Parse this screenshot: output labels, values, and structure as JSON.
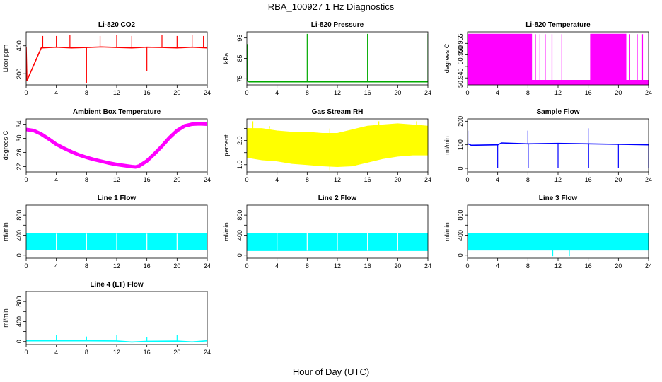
{
  "page": {
    "title": "RBA_100927  1 Hz Diagnostics",
    "x_axis_label": "Hour of Day (UTC)"
  },
  "chart_data": [
    {
      "type": "line",
      "title": "Li-820 CO2",
      "ylabel": "Licor ppm",
      "color": "#ff0000",
      "xlim": [
        0,
        24
      ],
      "ylim": [
        120,
        500
      ],
      "xticks": [
        0,
        4,
        8,
        12,
        16,
        20,
        24
      ],
      "yticks": [
        200,
        400
      ],
      "ytick_labels": [
        "200",
        "400"
      ],
      "series": [
        {
          "x": [
            0,
            0.1,
            2,
            4,
            6,
            8,
            10,
            12,
            14,
            16,
            18,
            20,
            22,
            24
          ],
          "y": [
            390,
            150,
            385,
            390,
            385,
            388,
            392,
            388,
            385,
            390,
            388,
            385,
            390,
            385
          ]
        }
      ],
      "spikes": [
        {
          "x": 0.1,
          "y": 150
        },
        {
          "x": 2.2,
          "y": 470
        },
        {
          "x": 4.0,
          "y": 470
        },
        {
          "x": 5.8,
          "y": 475
        },
        {
          "x": 8.0,
          "y": 130
        },
        {
          "x": 9.8,
          "y": 470
        },
        {
          "x": 12.0,
          "y": 475
        },
        {
          "x": 14.0,
          "y": 470
        },
        {
          "x": 16.0,
          "y": 220
        },
        {
          "x": 18.0,
          "y": 475
        },
        {
          "x": 20.0,
          "y": 470
        },
        {
          "x": 22.0,
          "y": 475
        },
        {
          "x": 23.5,
          "y": 470
        }
      ]
    },
    {
      "type": "line",
      "title": "Li-820 Pressure",
      "ylabel": "kPa",
      "color": "#00aa00",
      "xlim": [
        0,
        24
      ],
      "ylim": [
        72,
        98
      ],
      "xticks": [
        0,
        4,
        8,
        12,
        16,
        20,
        24
      ],
      "yticks": [
        75,
        85,
        95
      ],
      "ytick_labels": [
        "75",
        "85",
        "95"
      ],
      "series": [
        {
          "x": [
            0,
            0.3,
            4,
            8,
            12,
            16,
            20,
            24
          ],
          "y": [
            74,
            73.5,
            73.5,
            73.5,
            73.5,
            73.5,
            73.5,
            73.5
          ]
        }
      ],
      "spikes": [
        {
          "x": 0.05,
          "y": 92
        },
        {
          "x": 8.0,
          "y": 97
        },
        {
          "x": 16.0,
          "y": 97
        },
        {
          "x": 24.0,
          "y": 97
        }
      ]
    },
    {
      "type": "area",
      "title": "Li-820 Temperature",
      "ylabel": "degrees C",
      "color": "#ff00ff",
      "xlim": [
        0,
        24
      ],
      "ylim": [
        50.937,
        50.96
      ],
      "xticks": [
        0,
        4,
        8,
        12,
        16,
        20,
        24
      ],
      "yticks": [
        50.94,
        50.945,
        50.95,
        50.955
      ],
      "ytick_labels": [
        "50.940",
        "",
        "50.950",
        "50.955"
      ],
      "series": [
        {
          "x": [
            0,
            8.5,
            8.5,
            16.3,
            16.3,
            21,
            21,
            24
          ],
          "y": [
            50.959,
            50.959,
            50.939,
            50.939,
            50.959,
            50.959,
            50.939,
            50.939
          ]
        }
      ],
      "spikes": [
        {
          "x": 9.0,
          "y": 50.959
        },
        {
          "x": 9.6,
          "y": 50.959
        },
        {
          "x": 10.3,
          "y": 50.959
        },
        {
          "x": 11.2,
          "y": 50.959
        },
        {
          "x": 12.5,
          "y": 50.959
        },
        {
          "x": 21.5,
          "y": 50.959
        },
        {
          "x": 22.5,
          "y": 50.959
        },
        {
          "x": 23.2,
          "y": 50.959
        }
      ]
    },
    {
      "type": "line",
      "title": "Ambient Box Temperature",
      "ylabel": "degrees C",
      "color": "#ff00ff",
      "xlim": [
        0,
        24
      ],
      "ylim": [
        20.5,
        35.5
      ],
      "xticks": [
        0,
        4,
        8,
        12,
        16,
        20,
        24
      ],
      "yticks": [
        22,
        26,
        30,
        34
      ],
      "ytick_labels": [
        "22",
        "26",
        "30",
        "34"
      ],
      "series": [
        {
          "x": [
            0,
            1,
            2,
            3,
            4,
            5,
            6,
            7,
            8,
            9,
            10,
            11,
            12,
            13,
            14,
            14.5,
            15,
            16,
            17,
            18,
            19,
            20,
            21,
            22,
            23,
            24
          ],
          "y": [
            32.5,
            32.2,
            31.2,
            29.8,
            28.3,
            27.2,
            26.2,
            25.3,
            24.6,
            24,
            23.5,
            23.0,
            22.6,
            22.3,
            22.0,
            21.9,
            22.2,
            23.6,
            25.6,
            27.8,
            30.2,
            32.2,
            33.5,
            34.0,
            34.1,
            34.0
          ]
        }
      ],
      "spikes": []
    },
    {
      "type": "area",
      "title": "Gas Stream RH",
      "ylabel": "percent",
      "color": "#ffff00",
      "xlim": [
        0,
        24
      ],
      "ylim": [
        0.7,
        2.9
      ],
      "xticks": [
        0,
        4,
        8,
        12,
        16,
        20,
        24
      ],
      "yticks": [
        1.0,
        1.5,
        2.0,
        2.5
      ],
      "ytick_labels": [
        "1.0",
        "",
        "2.0",
        ""
      ],
      "series": [
        {
          "name": "upper",
          "x": [
            0,
            2,
            4,
            6,
            8,
            10,
            12,
            14,
            16,
            18,
            20,
            22,
            24
          ],
          "y": [
            2.5,
            2.5,
            2.4,
            2.35,
            2.35,
            2.3,
            2.3,
            2.45,
            2.6,
            2.65,
            2.7,
            2.65,
            2.6
          ]
        },
        {
          "name": "lower",
          "x": [
            0,
            2,
            4,
            6,
            8,
            10,
            12,
            14,
            16,
            18,
            20,
            22,
            24
          ],
          "y": [
            1.3,
            1.2,
            1.15,
            1.05,
            1.0,
            0.95,
            0.92,
            0.95,
            1.1,
            1.25,
            1.35,
            1.4,
            1.4
          ]
        }
      ],
      "spikes": [
        {
          "x": 0.8,
          "y": 2.8
        },
        {
          "x": 3.0,
          "y": 2.6
        },
        {
          "x": 11.0,
          "y": 0.75
        },
        {
          "x": 17.5,
          "y": 2.8
        },
        {
          "x": 22.5,
          "y": 2.8
        }
      ]
    },
    {
      "type": "line",
      "title": "Sample Flow",
      "ylabel": "ml/min",
      "color": "#0000ff",
      "xlim": [
        0,
        24
      ],
      "ylim": [
        -15,
        210
      ],
      "xticks": [
        0,
        4,
        8,
        12,
        16,
        20,
        24
      ],
      "yticks": [
        0,
        100,
        200
      ],
      "ytick_labels": [
        "0",
        "100",
        "200"
      ],
      "series": [
        {
          "x": [
            0,
            0.5,
            4,
            4.5,
            8,
            12,
            16,
            20,
            24
          ],
          "y": [
            105,
            98,
            100,
            108,
            104,
            106,
            104,
            102,
            100
          ]
        }
      ],
      "spikes": [
        {
          "x": 0.05,
          "y": 160
        },
        {
          "x": 4.0,
          "y": 0
        },
        {
          "x": 8.0,
          "y": 160
        },
        {
          "x": 8.05,
          "y": 0
        },
        {
          "x": 12.0,
          "y": 0
        },
        {
          "x": 16.0,
          "y": 170
        },
        {
          "x": 16.05,
          "y": 0
        },
        {
          "x": 20.0,
          "y": 0
        },
        {
          "x": 24.0,
          "y": 0
        }
      ]
    },
    {
      "type": "area",
      "title": "Line 1 Flow",
      "ylabel": "ml/min",
      "color": "#00ffff",
      "xlim": [
        0,
        24
      ],
      "ylim": [
        -60,
        1000
      ],
      "xticks": [
        0,
        4,
        8,
        12,
        16,
        20,
        24
      ],
      "yticks": [
        0,
        200,
        400,
        600,
        800
      ],
      "ytick_labels": [
        "0",
        "",
        "400",
        "",
        "800"
      ],
      "series": [
        {
          "name": "upper",
          "x": [
            0,
            24
          ],
          "y": [
            430,
            430
          ]
        },
        {
          "name": "lower",
          "x": [
            0,
            24
          ],
          "y": [
            110,
            110
          ]
        }
      ],
      "spikes": [
        {
          "x": 4.0,
          "y": 430
        },
        {
          "x": 8.0,
          "y": 430
        },
        {
          "x": 12.0,
          "y": 430
        },
        {
          "x": 16.0,
          "y": 430
        },
        {
          "x": 20.0,
          "y": 430
        }
      ]
    },
    {
      "type": "area",
      "title": "Line 2 Flow",
      "ylabel": "ml/min",
      "color": "#00ffff",
      "xlim": [
        0,
        24
      ],
      "ylim": [
        -60,
        1000
      ],
      "xticks": [
        0,
        4,
        8,
        12,
        16,
        20,
        24
      ],
      "yticks": [
        0,
        200,
        400,
        600,
        800
      ],
      "ytick_labels": [
        "0",
        "",
        "400",
        "",
        "800"
      ],
      "series": [
        {
          "name": "upper",
          "x": [
            0,
            24
          ],
          "y": [
            440,
            440
          ]
        },
        {
          "name": "lower",
          "x": [
            0,
            24
          ],
          "y": [
            90,
            90
          ]
        }
      ],
      "spikes": [
        {
          "x": 4.0,
          "y": 440
        },
        {
          "x": 8.0,
          "y": 440
        },
        {
          "x": 12.0,
          "y": 440
        },
        {
          "x": 16.0,
          "y": 440
        },
        {
          "x": 20.0,
          "y": 440
        }
      ]
    },
    {
      "type": "area",
      "title": "Line 3 Flow",
      "ylabel": "ml/min",
      "color": "#00ffff",
      "xlim": [
        0,
        24
      ],
      "ylim": [
        -60,
        1000
      ],
      "xticks": [
        0,
        4,
        8,
        12,
        16,
        20,
        24
      ],
      "yticks": [
        0,
        200,
        400,
        600,
        800
      ],
      "ytick_labels": [
        "0",
        "",
        "400",
        "",
        "800"
      ],
      "series": [
        {
          "name": "upper",
          "x": [
            0,
            24
          ],
          "y": [
            430,
            430
          ]
        },
        {
          "name": "lower",
          "x": [
            0,
            24
          ],
          "y": [
            100,
            100
          ]
        }
      ],
      "spikes": [
        {
          "x": 11.3,
          "y": -20
        },
        {
          "x": 13.5,
          "y": -20
        }
      ]
    },
    {
      "type": "line",
      "title": "Line 4 (LT) Flow",
      "ylabel": "ml/min",
      "color": "#00ffff",
      "xlim": [
        0,
        24
      ],
      "ylim": [
        -60,
        1000
      ],
      "xticks": [
        0,
        4,
        8,
        12,
        16,
        20,
        24
      ],
      "yticks": [
        0,
        200,
        400,
        600,
        800
      ],
      "ytick_labels": [
        "0",
        "",
        "400",
        "",
        "800"
      ],
      "series": [
        {
          "x": [
            0,
            4,
            8,
            12,
            14,
            16,
            20,
            22,
            24
          ],
          "y": [
            15,
            15,
            15,
            12,
            -10,
            5,
            10,
            -8,
            15
          ]
        }
      ],
      "spikes": [
        {
          "x": 4.0,
          "y": 130
        },
        {
          "x": 8.0,
          "y": 100
        },
        {
          "x": 12.0,
          "y": 130
        },
        {
          "x": 16.0,
          "y": 90
        },
        {
          "x": 20.0,
          "y": 130
        },
        {
          "x": 24.0,
          "y": 120
        }
      ]
    }
  ]
}
